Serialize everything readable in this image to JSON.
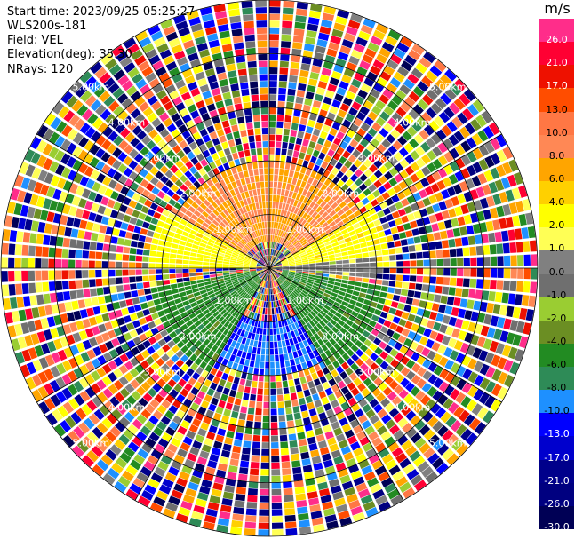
{
  "header": {
    "start_time": "Start time: 2023/09/25 05:25:27",
    "instrument": "WLS200s-181",
    "field": "Field: VEL",
    "elevation": "Elevation(deg): 35.30",
    "nrays": "NRays: 120"
  },
  "colorbar": {
    "unit": "m/s",
    "levels": [
      {
        "label": "26.0",
        "color": "#ff2d8a"
      },
      {
        "label": "21.0",
        "color": "#ff0033"
      },
      {
        "label": "17.0",
        "color": "#ee1100"
      },
      {
        "label": "13.0",
        "color": "#ff4d00"
      },
      {
        "label": "10.0",
        "color": "#ff7744"
      },
      {
        "label": "8.0",
        "color": "#ff8855"
      },
      {
        "label": "6.0",
        "color": "#ffa500"
      },
      {
        "label": "4.0",
        "color": "#ffd000"
      },
      {
        "label": "2.0",
        "color": "#ffff00"
      },
      {
        "label": "1.0",
        "color": "#ffff55"
      },
      {
        "label": "0.0",
        "color": "#808080"
      },
      {
        "label": "-1.0",
        "color": "#6f6f6f"
      },
      {
        "label": "-2.0",
        "color": "#9acd32"
      },
      {
        "label": "-4.0",
        "color": "#6b8e23"
      },
      {
        "label": "-6.0",
        "color": "#228b22"
      },
      {
        "label": "-8.0",
        "color": "#2e8b57"
      },
      {
        "label": "-10.0",
        "color": "#1e90ff"
      },
      {
        "label": "-13.0",
        "color": "#0000ff"
      },
      {
        "label": "-17.0",
        "color": "#0000cd"
      },
      {
        "label": "-21.0",
        "color": "#00008b"
      },
      {
        "label": "-26.0",
        "color": "#000080"
      },
      {
        "label": "-30.0",
        "color": "#000055"
      }
    ]
  },
  "chart_data": {
    "type": "heatmap",
    "projection": "polar-ppi",
    "field": "VEL",
    "unit": "m/s",
    "rays": 120,
    "range_ring_labels": [
      "1.00km",
      "2.00km",
      "3.00km",
      "4.00km",
      "5.00km"
    ],
    "range_rings_km": [
      1,
      2,
      3,
      4,
      5
    ],
    "max_range_km": 5.0,
    "valid_signal_range_km": 2.2,
    "azimuth_spokes_deg": [
      0,
      30,
      60,
      90,
      120,
      150,
      180,
      210,
      240,
      270,
      300,
      330
    ],
    "velocity_zones": [
      {
        "azimuth_from_deg": 300,
        "azimuth_to_deg": 60,
        "range_km": [
          0.5,
          2.0
        ],
        "velocity": 8.0
      },
      {
        "azimuth_from_deg": 60,
        "azimuth_to_deg": 90,
        "range_km": [
          0.2,
          2.2
        ],
        "velocity": 3.0
      },
      {
        "azimuth_from_deg": 270,
        "azimuth_to_deg": 300,
        "range_km": [
          0.2,
          2.2
        ],
        "velocity": 3.0
      },
      {
        "azimuth_from_deg": 85,
        "azimuth_to_deg": 95,
        "range_km": [
          0.1,
          2.0
        ],
        "velocity": 0.0
      },
      {
        "azimuth_from_deg": 100,
        "azimuth_to_deg": 150,
        "range_km": [
          0.2,
          2.2
        ],
        "velocity": -5.0
      },
      {
        "azimuth_from_deg": 150,
        "azimuth_to_deg": 210,
        "range_km": [
          1.0,
          2.0
        ],
        "velocity": -10.0
      },
      {
        "azimuth_from_deg": 210,
        "azimuth_to_deg": 260,
        "range_km": [
          0.2,
          2.2
        ],
        "velocity": -5.0
      }
    ],
    "beyond_range": "noise"
  }
}
